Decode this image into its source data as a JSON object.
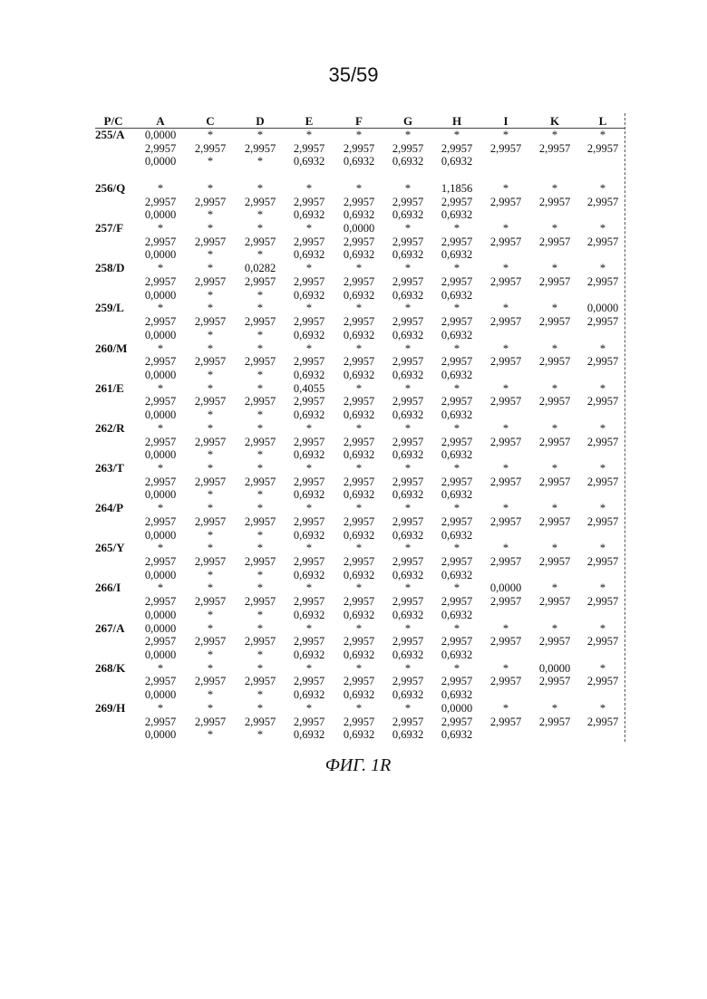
{
  "page_number": "35/59",
  "caption": "ФИГ. 1R",
  "table": {
    "corner": "P/C",
    "columns": [
      "A",
      "C",
      "D",
      "E",
      "F",
      "G",
      "H",
      "I",
      "K",
      "L"
    ],
    "rows": [
      {
        "label": "255/A",
        "lines": [
          [
            "0,0000",
            "*",
            "*",
            "*",
            "*",
            "*",
            "*",
            "*",
            "*",
            "*"
          ],
          [
            "2,9957",
            "2,9957",
            "2,9957",
            "2,9957",
            "2,9957",
            "2,9957",
            "2,9957",
            "2,9957",
            "2,9957",
            "2,9957"
          ],
          [
            "0,0000",
            "*",
            "*",
            "0,6932",
            "0,6932",
            "0,6932",
            "0,6932",
            "",
            "",
            ""
          ]
        ]
      },
      {
        "label": "256/Q",
        "lines": [
          [
            "*",
            "*",
            "*",
            "*",
            "*",
            "*",
            "1,1856",
            "*",
            "*",
            "*"
          ],
          [
            "2,9957",
            "2,9957",
            "2,9957",
            "2,9957",
            "2,9957",
            "2,9957",
            "2,9957",
            "2,9957",
            "2,9957",
            "2,9957"
          ],
          [
            "0,0000",
            "*",
            "*",
            "0,6932",
            "0,6932",
            "0,6932",
            "0,6932",
            "",
            "",
            ""
          ]
        ]
      },
      {
        "label": "257/F",
        "lines": [
          [
            "*",
            "*",
            "*",
            "*",
            "0,0000",
            "*",
            "*",
            "*",
            "*",
            "*"
          ],
          [
            "2,9957",
            "2,9957",
            "2,9957",
            "2,9957",
            "2,9957",
            "2,9957",
            "2,9957",
            "2,9957",
            "2,9957",
            "2,9957"
          ],
          [
            "0,0000",
            "*",
            "*",
            "0,6932",
            "0,6932",
            "0,6932",
            "0,6932",
            "",
            "",
            ""
          ]
        ]
      },
      {
        "label": "258/D",
        "lines": [
          [
            "*",
            "*",
            "0,0282",
            "*",
            "*",
            "*",
            "*",
            "*",
            "*",
            "*"
          ],
          [
            "2,9957",
            "2,9957",
            "2,9957",
            "2,9957",
            "2,9957",
            "2,9957",
            "2,9957",
            "2,9957",
            "2,9957",
            "2,9957"
          ],
          [
            "0,0000",
            "*",
            "*",
            "0,6932",
            "0,6932",
            "0,6932",
            "0,6932",
            "",
            "",
            ""
          ]
        ]
      },
      {
        "label": "259/L",
        "lines": [
          [
            "*",
            "*",
            "*",
            "*",
            "*",
            "*",
            "*",
            "*",
            "*",
            "0,0000"
          ],
          [
            "2,9957",
            "2,9957",
            "2,9957",
            "2,9957",
            "2,9957",
            "2,9957",
            "2,9957",
            "2,9957",
            "2,9957",
            "2,9957"
          ],
          [
            "0,0000",
            "*",
            "*",
            "0,6932",
            "0,6932",
            "0,6932",
            "0,6932",
            "",
            "",
            ""
          ]
        ]
      },
      {
        "label": "260/M",
        "lines": [
          [
            "*",
            "*",
            "*",
            "*",
            "*",
            "*",
            "*",
            "*",
            "*",
            "*"
          ],
          [
            "2,9957",
            "2,9957",
            "2,9957",
            "2,9957",
            "2,9957",
            "2,9957",
            "2,9957",
            "2,9957",
            "2,9957",
            "2,9957"
          ],
          [
            "0,0000",
            "*",
            "*",
            "0,6932",
            "0,6932",
            "0,6932",
            "0,6932",
            "",
            "",
            ""
          ]
        ]
      },
      {
        "label": "261/E",
        "lines": [
          [
            "*",
            "*",
            "*",
            "0,4055",
            "*",
            "*",
            "*",
            "*",
            "*",
            "*"
          ],
          [
            "2,9957",
            "2,9957",
            "2,9957",
            "2,9957",
            "2,9957",
            "2,9957",
            "2,9957",
            "2,9957",
            "2,9957",
            "2,9957"
          ],
          [
            "0,0000",
            "*",
            "*",
            "0,6932",
            "0,6932",
            "0,6932",
            "0,6932",
            "",
            "",
            ""
          ]
        ]
      },
      {
        "label": "262/R",
        "lines": [
          [
            "*",
            "*",
            "*",
            "*",
            "*",
            "*",
            "*",
            "*",
            "*",
            "*"
          ],
          [
            "2,9957",
            "2,9957",
            "2,9957",
            "2,9957",
            "2,9957",
            "2,9957",
            "2,9957",
            "2,9957",
            "2,9957",
            "2,9957"
          ],
          [
            "0,0000",
            "*",
            "*",
            "0,6932",
            "0,6932",
            "0,6932",
            "0,6932",
            "",
            "",
            ""
          ]
        ]
      },
      {
        "label": "263/T",
        "lines": [
          [
            "*",
            "*",
            "*",
            "*",
            "*",
            "*",
            "*",
            "*",
            "*",
            "*"
          ],
          [
            "2,9957",
            "2,9957",
            "2,9957",
            "2,9957",
            "2,9957",
            "2,9957",
            "2,9957",
            "2,9957",
            "2,9957",
            "2,9957"
          ],
          [
            "0,0000",
            "*",
            "*",
            "0,6932",
            "0,6932",
            "0,6932",
            "0,6932",
            "",
            "",
            ""
          ]
        ]
      },
      {
        "label": "264/P",
        "lines": [
          [
            "*",
            "*",
            "*",
            "*",
            "*",
            "*",
            "*",
            "*",
            "*",
            "*"
          ],
          [
            "2,9957",
            "2,9957",
            "2,9957",
            "2,9957",
            "2,9957",
            "2,9957",
            "2,9957",
            "2,9957",
            "2,9957",
            "2,9957"
          ],
          [
            "0,0000",
            "*",
            "*",
            "0,6932",
            "0,6932",
            "0,6932",
            "0,6932",
            "",
            "",
            ""
          ]
        ]
      },
      {
        "label": "265/Y",
        "lines": [
          [
            "*",
            "*",
            "*",
            "*",
            "*",
            "*",
            "*",
            "*",
            "*",
            "*"
          ],
          [
            "2,9957",
            "2,9957",
            "2,9957",
            "2,9957",
            "2,9957",
            "2,9957",
            "2,9957",
            "2,9957",
            "2,9957",
            "2,9957"
          ],
          [
            "0,0000",
            "*",
            "*",
            "0,6932",
            "0,6932",
            "0,6932",
            "0,6932",
            "",
            "",
            ""
          ]
        ]
      },
      {
        "label": "266/I",
        "lines": [
          [
            "*",
            "*",
            "*",
            "*",
            "*",
            "*",
            "*",
            "0,0000",
            "*",
            "*"
          ],
          [
            "2,9957",
            "2,9957",
            "2,9957",
            "2,9957",
            "2,9957",
            "2,9957",
            "2,9957",
            "2,9957",
            "2,9957",
            "2,9957"
          ],
          [
            "0,0000",
            "*",
            "*",
            "0,6932",
            "0,6932",
            "0,6932",
            "0,6932",
            "",
            "",
            ""
          ]
        ]
      },
      {
        "label": "267/A",
        "lines": [
          [
            "0,0000",
            "*",
            "*",
            "*",
            "*",
            "*",
            "*",
            "*",
            "*",
            "*"
          ],
          [
            "2,9957",
            "2,9957",
            "2,9957",
            "2,9957",
            "2,9957",
            "2,9957",
            "2,9957",
            "2,9957",
            "2,9957",
            "2,9957"
          ],
          [
            "0,0000",
            "*",
            "*",
            "0,6932",
            "0,6932",
            "0,6932",
            "0,6932",
            "",
            "",
            ""
          ]
        ]
      },
      {
        "label": "268/K",
        "lines": [
          [
            "*",
            "*",
            "*",
            "*",
            "*",
            "*",
            "*",
            "*",
            "0,0000",
            "*"
          ],
          [
            "2,9957",
            "2,9957",
            "2,9957",
            "2,9957",
            "2,9957",
            "2,9957",
            "2,9957",
            "2,9957",
            "2,9957",
            "2,9957"
          ],
          [
            "0,0000",
            "*",
            "*",
            "0,6932",
            "0,6932",
            "0,6932",
            "0,6932",
            "",
            "",
            ""
          ]
        ]
      },
      {
        "label": "269/H",
        "lines": [
          [
            "*",
            "*",
            "*",
            "*",
            "*",
            "*",
            "0,0000",
            "*",
            "*",
            "*"
          ],
          [
            "2,9957",
            "2,9957",
            "2,9957",
            "2,9957",
            "2,9957",
            "2,9957",
            "2,9957",
            "2,9957",
            "2,9957",
            "2,9957"
          ],
          [
            "0,0000",
            "*",
            "*",
            "0,6932",
            "0,6932",
            "0,6932",
            "0,6932",
            "",
            "",
            ""
          ]
        ]
      }
    ]
  }
}
